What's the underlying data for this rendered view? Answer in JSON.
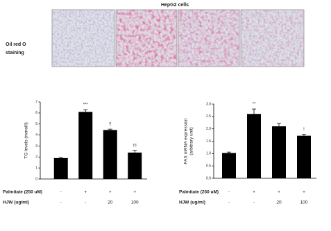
{
  "figure": {
    "title": "HepG2 cells",
    "staining_label": [
      "Oil red O",
      "staining"
    ]
  },
  "chart_data": [
    {
      "type": "bar",
      "y_label": "TG levels (mmol/l)",
      "values": [
        1.9,
        6.1,
        4.45,
        2.4
      ],
      "errors": [
        0.05,
        0.2,
        0.08,
        0.2
      ],
      "sig_labels": [
        null,
        "***",
        "!!",
        "!!!"
      ],
      "color": "#000000",
      "ylim": [
        0,
        7
      ],
      "yticks": [
        0,
        1,
        2,
        3,
        4,
        5,
        6,
        7
      ],
      "treatments": [
        {
          "label": "Palmitate (250 uM)",
          "values": [
            "-",
            "+",
            "+",
            "+"
          ]
        },
        {
          "label": "HJW (ug/ml)",
          "values": [
            "-",
            "-",
            "20",
            "100"
          ]
        }
      ]
    },
    {
      "type": "bar",
      "y_label": [
        "FAS mRNA expression",
        "(arbitrary unit)"
      ],
      "values": [
        1.02,
        2.6,
        2.1,
        1.72
      ],
      "errors": [
        0.04,
        0.2,
        0.12,
        0.06
      ],
      "sig_labels": [
        null,
        "**",
        null,
        "!"
      ],
      "color": "#000000",
      "ylim": [
        0,
        3
      ],
      "yticks": [
        {
          "value": 0,
          "label": "0.0"
        },
        {
          "value": 0.5,
          "label": "0.5"
        },
        {
          "value": 1,
          "label": "1.0"
        },
        {
          "value": 1.5,
          "label": "1.5"
        },
        {
          "value": 2,
          "label": "2.0"
        },
        {
          "value": 2.5,
          "label": "2.5"
        },
        {
          "value": 3,
          "label": "3.0"
        }
      ],
      "treatments": [
        {
          "label": "Palmitate (250 uM)",
          "values": [
            "-",
            "+",
            "+",
            "+"
          ]
        },
        {
          "label": "HJW (ug/ml)",
          "values": [
            "-",
            "-",
            "20",
            "100"
          ]
        }
      ]
    }
  ]
}
